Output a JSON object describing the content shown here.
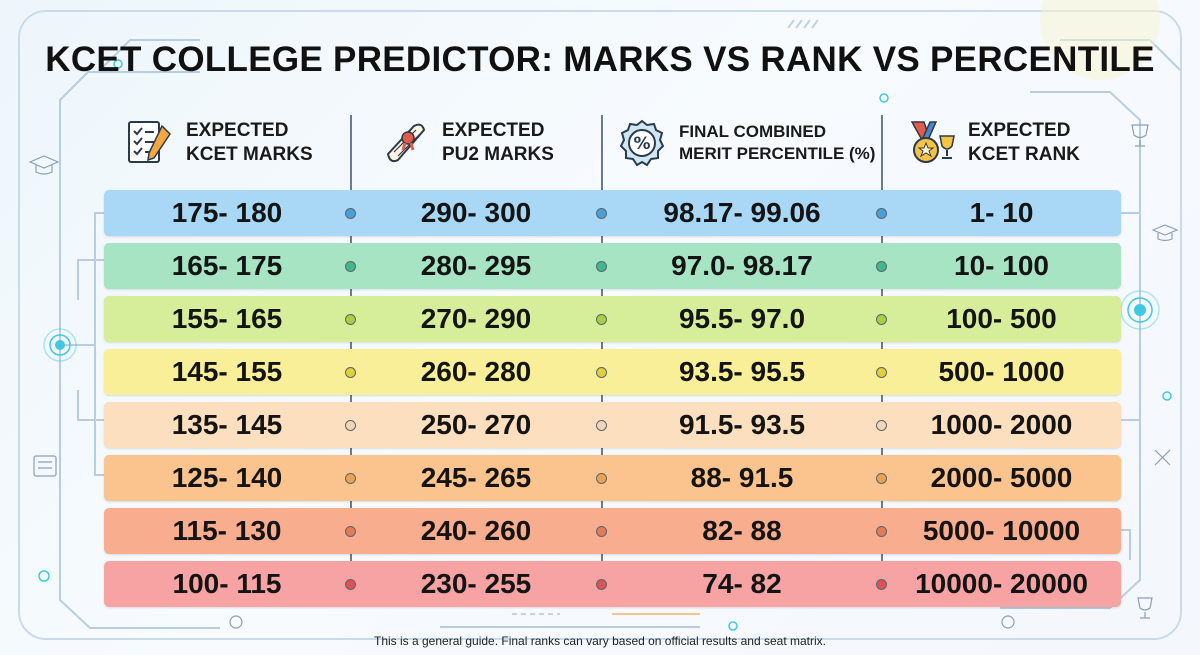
{
  "title": "KCET COLLEGE PREDICTOR: MARKS VS RANK VS PERCENTILE",
  "columns": [
    {
      "label": "EXPECTED\nKCET MARKS",
      "icon": "checklist-pencil-icon"
    },
    {
      "label": "EXPECTED\nPU2 MARKS",
      "icon": "diploma-scroll-icon"
    },
    {
      "label": "FINAL COMBINED\nMERIT PERCENTILE (%)",
      "icon": "percent-badge-icon"
    },
    {
      "label": "EXPECTED\nKCET RANK",
      "icon": "medal-trophy-icon"
    }
  ],
  "rows": [
    {
      "kcet_marks": "175- 180",
      "pu2_marks": "290- 300",
      "percentile": "98.17- 99.06",
      "rank": "1- 10",
      "color": "#a8d8f6",
      "dot": "#4a9fd6"
    },
    {
      "kcet_marks": "165- 175",
      "pu2_marks": "280- 295",
      "percentile": "97.0- 98.17",
      "rank": "10- 100",
      "color": "#a6e4c4",
      "dot": "#3fb98a"
    },
    {
      "kcet_marks": "155- 165",
      "pu2_marks": "270- 290",
      "percentile": "95.5- 97.0",
      "rank": "100- 500",
      "color": "#d6ee9a",
      "dot": "#a8cf3e"
    },
    {
      "kcet_marks": "145- 155",
      "pu2_marks": "260- 280",
      "percentile": "93.5- 95.5",
      "rank": "500- 1000",
      "color": "#f8ef98",
      "dot": "#e3cf3a"
    },
    {
      "kcet_marks": "135- 145",
      "pu2_marks": "250- 270",
      "percentile": "91.5- 93.5",
      "rank": "1000- 2000",
      "color": "#fbdfbe",
      "dot": "#f3d7b4"
    },
    {
      "kcet_marks": "125- 140",
      "pu2_marks": "245- 265",
      "percentile": "88- 91.5",
      "rank": "2000- 5000",
      "color": "#fbc48f",
      "dot": "#eaa24e"
    },
    {
      "kcet_marks": "115- 130",
      "pu2_marks": "240- 260",
      "percentile": "82- 88",
      "rank": "5000- 10000",
      "color": "#f9ad8f",
      "dot": "#e77a56"
    },
    {
      "kcet_marks": "100- 115",
      "pu2_marks": "230- 255",
      "percentile": "74- 82",
      "rank": "10000- 20000",
      "color": "#f7a3a3",
      "dot": "#dd5353"
    }
  ],
  "footnote": "This is a general guide. Final ranks can vary based on official results and seat matrix.",
  "colors": {
    "accent": "#3ec9e0",
    "frame": "#c9dbea",
    "separator": "#6a7b8d"
  }
}
